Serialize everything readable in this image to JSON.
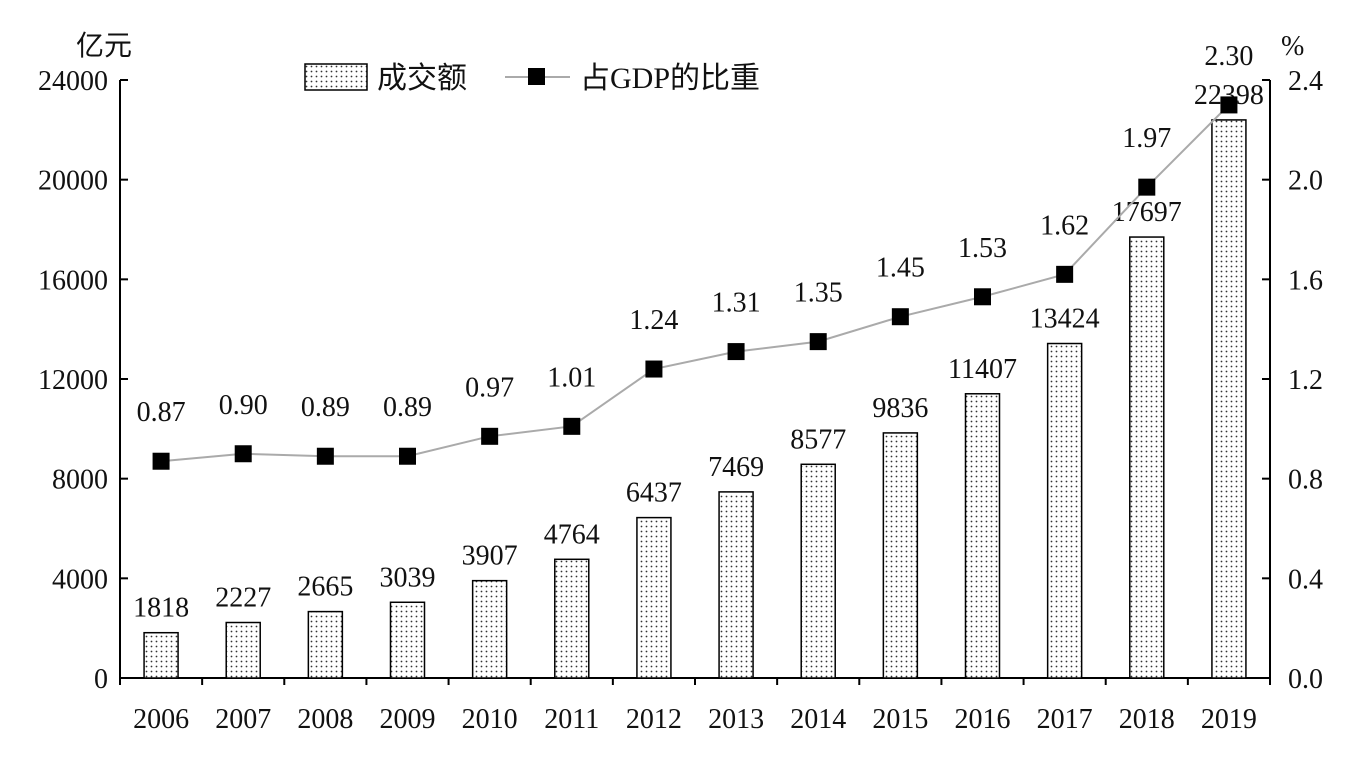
{
  "chart_data": {
    "type": "bar",
    "categories": [
      "2006",
      "2007",
      "2008",
      "2009",
      "2010",
      "2011",
      "2012",
      "2013",
      "2014",
      "2015",
      "2016",
      "2017",
      "2018",
      "2019"
    ],
    "series": [
      {
        "name": "成交额",
        "type": "bar",
        "axis": "left",
        "values": [
          1818,
          2227,
          2665,
          3039,
          3907,
          4764,
          6437,
          7469,
          8577,
          9836,
          11407,
          13424,
          17697,
          22398
        ],
        "labels": [
          "1818",
          "2227",
          "2665",
          "3039",
          "3907",
          "4764",
          "6437",
          "7469",
          "8577",
          "9836",
          "11407",
          "13424",
          "17697",
          "22398"
        ],
        "pattern": "dotted"
      },
      {
        "name": "占GDP的比重",
        "type": "line",
        "axis": "right",
        "values": [
          0.87,
          0.9,
          0.89,
          0.89,
          0.97,
          1.01,
          1.24,
          1.31,
          1.35,
          1.45,
          1.53,
          1.62,
          1.97,
          2.3
        ],
        "labels": [
          "0.87",
          "0.90",
          "0.89",
          "0.89",
          "0.97",
          "1.01",
          "1.24",
          "1.31",
          "1.35",
          "1.45",
          "1.53",
          "1.62",
          "1.97",
          "2.30"
        ],
        "line_color": "#aaaaaa",
        "marker_color": "#000000"
      }
    ],
    "y_left": {
      "unit": "亿元",
      "ylim": [
        0,
        24000
      ],
      "ticks": [
        "0",
        "4000",
        "8000",
        "12000",
        "16000",
        "20000",
        "24000"
      ]
    },
    "y_right": {
      "unit": "%",
      "ylim": [
        0,
        2.4
      ],
      "ticks": [
        "0.0",
        "0.4",
        "0.8",
        "1.2",
        "1.6",
        "2.0",
        "2.4"
      ]
    },
    "legend": {
      "position": "top-left",
      "items": [
        "成交额",
        "占GDP的比重"
      ]
    },
    "grid": false
  }
}
